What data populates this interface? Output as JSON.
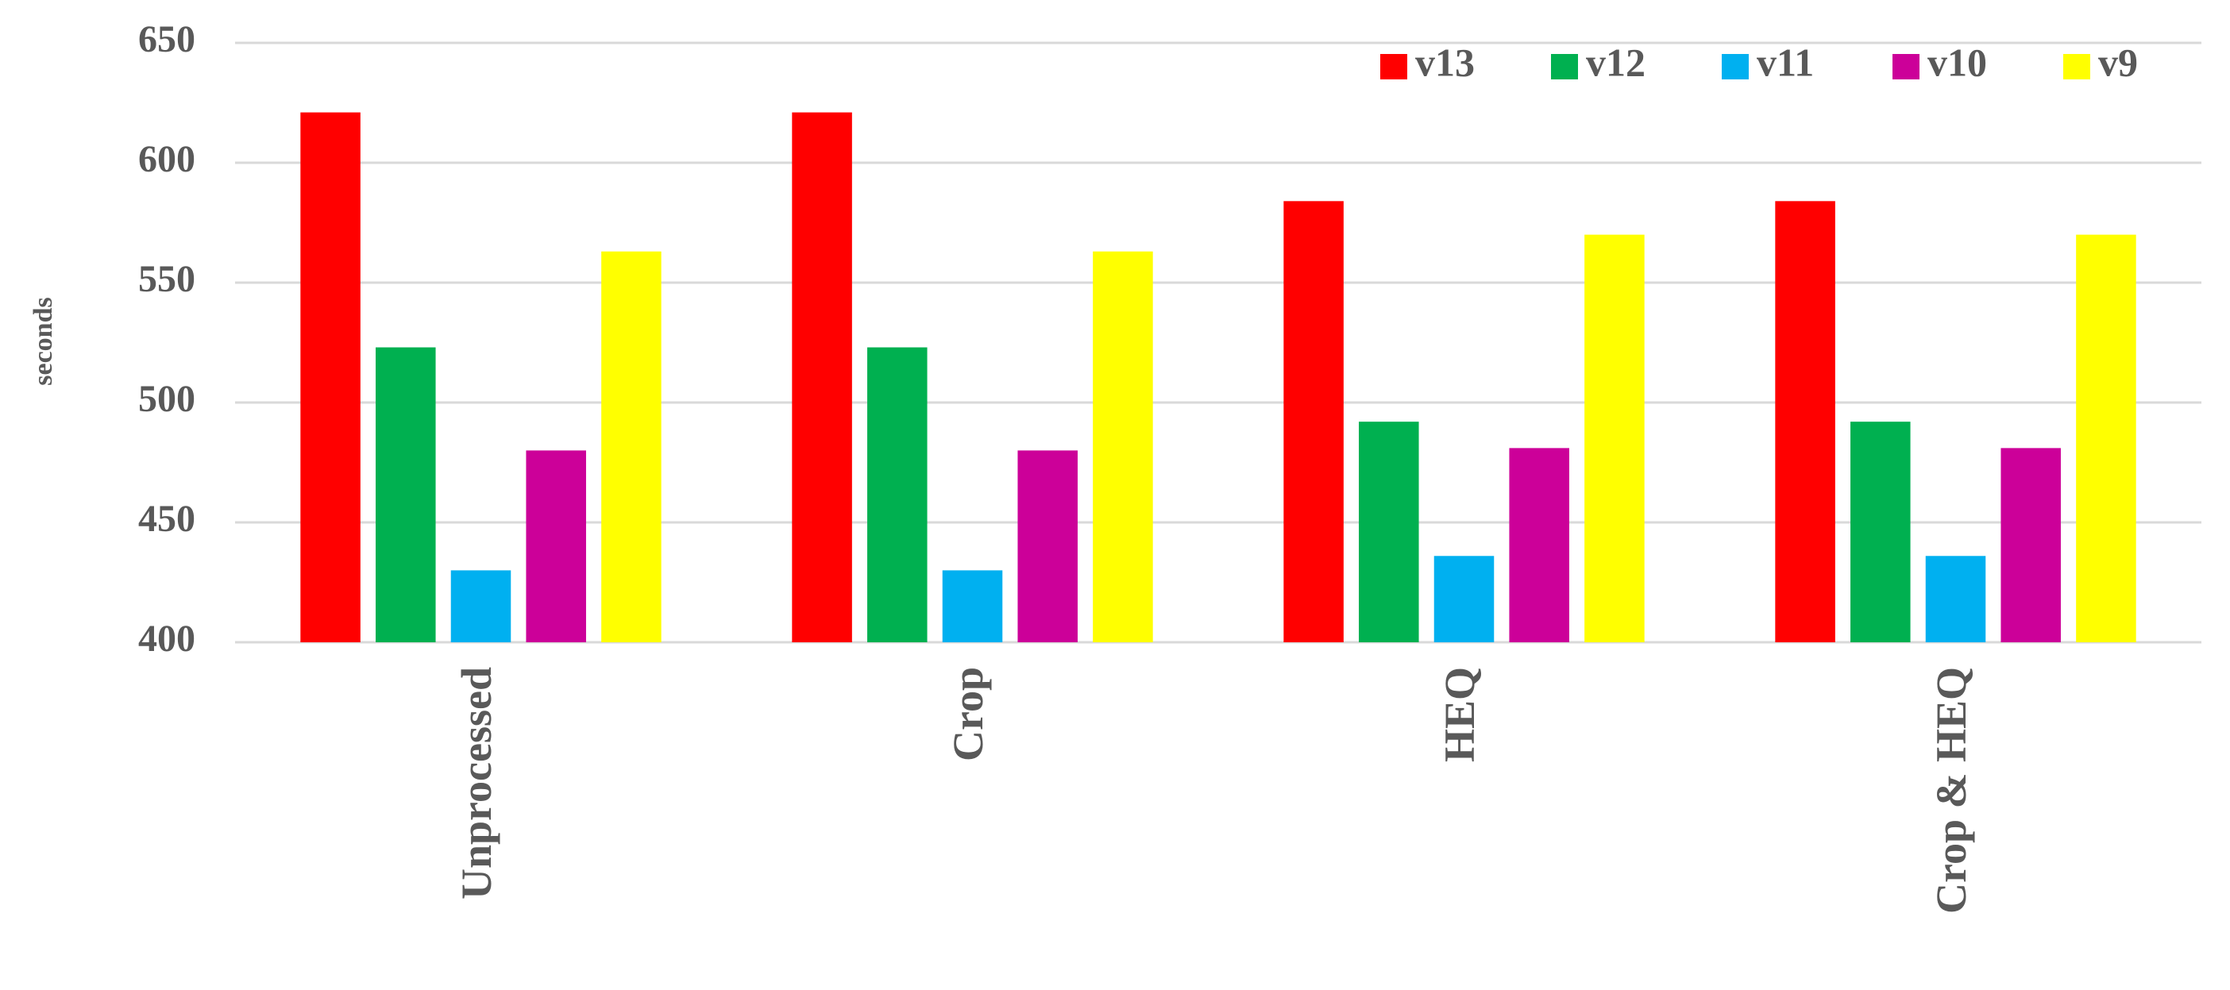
{
  "chart_data": {
    "type": "bar",
    "y_label": "seconds",
    "categories": [
      "Unprocessed",
      "Crop",
      "HEQ",
      "Crop & HEQ"
    ],
    "series": [
      {
        "name": "v13",
        "color": "#ff0000",
        "values": [
          621,
          621,
          584,
          584
        ]
      },
      {
        "name": "v12",
        "color": "#00b050",
        "values": [
          523,
          523,
          492,
          492
        ]
      },
      {
        "name": "v11",
        "color": "#00b0f0",
        "values": [
          430,
          430,
          436,
          436
        ]
      },
      {
        "name": "v10",
        "color": "#cc0099",
        "values": [
          480,
          480,
          481,
          481
        ]
      },
      {
        "name": "v9",
        "color": "#ffff00",
        "values": [
          563,
          563,
          570,
          570
        ]
      }
    ],
    "ylim": [
      400,
      650
    ],
    "yticks": [
      400,
      450,
      500,
      550,
      600,
      650
    ],
    "grid": true,
    "legend": "top-right"
  }
}
